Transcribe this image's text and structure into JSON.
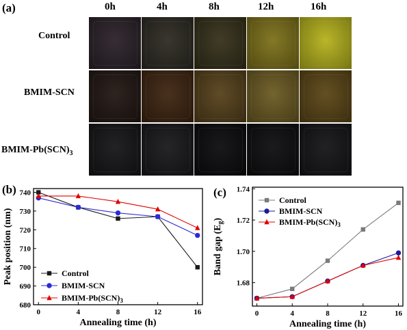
{
  "figure_a": {
    "panel_label": "(a)",
    "times": [
      "0h",
      "4h",
      "8h",
      "12h",
      "16h"
    ],
    "rows": [
      {
        "label": "Control",
        "colors": [
          "#2a2128",
          "#2d2a22",
          "#35301a",
          "#7c7019",
          "#b5b21c"
        ]
      },
      {
        "label": "BMIM-SCN",
        "colors": [
          "#211612",
          "#3d2410",
          "#55401a",
          "#6b5a22",
          "#5a4515"
        ]
      },
      {
        "label": "BMIM-Pb(SCN)",
        "label_sub": "3",
        "colors": [
          "#151416",
          "#18171a",
          "#0b0a0c",
          "#0d0c0e",
          "#141316"
        ]
      }
    ]
  },
  "chart_data": [
    {
      "panel_label": "(b)",
      "type": "line",
      "xlabel": "Annealing time (h)",
      "ylabel": "Peak position (nm)",
      "xticks": [
        0,
        4,
        8,
        12,
        16
      ],
      "yticks": [
        680,
        690,
        700,
        710,
        720,
        730,
        740
      ],
      "xlim": [
        -0.5,
        16.5
      ],
      "ylim": [
        680,
        742
      ],
      "series": [
        {
          "name": "Control",
          "color": "#1a1a1a",
          "marker": "square",
          "x": [
            0,
            4,
            8,
            12,
            16
          ],
          "y": [
            740,
            732,
            726,
            727,
            700
          ]
        },
        {
          "name": "BMIM-SCN",
          "color": "#2b2bd6",
          "marker": "circle",
          "x": [
            0,
            4,
            8,
            12,
            16
          ],
          "y": [
            737,
            732,
            729,
            727,
            717
          ]
        },
        {
          "name": "BMIM-Pb(SCN)",
          "name_sub": "3",
          "color": "#e00000",
          "marker": "triangle",
          "x": [
            0,
            4,
            8,
            12,
            16
          ],
          "y": [
            738,
            738,
            735,
            731,
            721
          ]
        }
      ],
      "legend": "bottom-left"
    },
    {
      "panel_label": "(c)",
      "type": "line",
      "xlabel": "Annealing time (h)",
      "ylabel": "Band gap (E",
      "ylabel_sub": "g",
      "ylabel_end": ")",
      "xticks": [
        0,
        4,
        8,
        12,
        16
      ],
      "yticks": [
        1.68,
        1.7,
        1.72,
        1.74
      ],
      "ytick_labels": [
        "1.68",
        "1.70",
        "1.72",
        "1.74"
      ],
      "xlim": [
        -0.5,
        16.5
      ],
      "ylim": [
        1.665,
        1.741
      ],
      "series": [
        {
          "name": "Control",
          "color": "#7a7a7a",
          "marker": "square",
          "x": [
            0,
            4,
            8,
            12,
            16
          ],
          "y": [
            1.67,
            1.676,
            1.694,
            1.714,
            1.731
          ]
        },
        {
          "name": "BMIM-SCN",
          "color": "#1a1a9c",
          "marker": "circle",
          "x": [
            0,
            4,
            8,
            12,
            16
          ],
          "y": [
            1.67,
            1.671,
            1.681,
            1.691,
            1.699
          ]
        },
        {
          "name": "BMIM-Pb(SCN)",
          "name_sub": "3",
          "color": "#e00000",
          "marker": "triangle",
          "x": [
            0,
            4,
            8,
            12,
            16
          ],
          "y": [
            1.67,
            1.671,
            1.681,
            1.691,
            1.696
          ]
        }
      ],
      "legend": "top-left"
    }
  ]
}
